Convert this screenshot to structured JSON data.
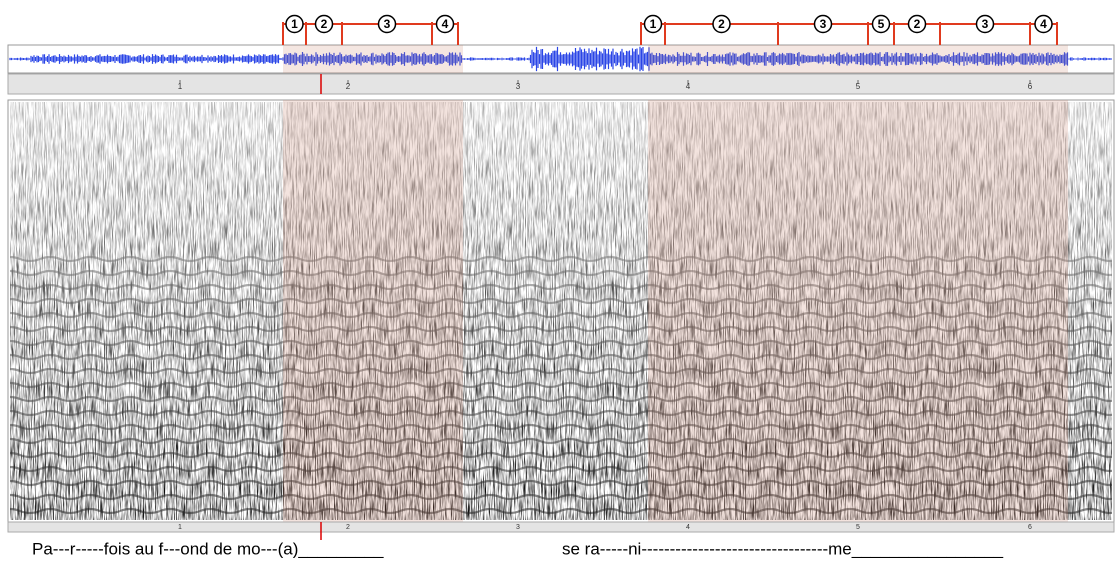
{
  "segment_labels": [
    "1",
    "2",
    "3",
    "4",
    "1",
    "2",
    "3",
    "5",
    "2",
    "3",
    "4"
  ],
  "time_axis": {
    "labels": [
      "1",
      "2",
      "3",
      "4",
      "5",
      "6"
    ]
  },
  "lyrics": [
    "Pa---r-----fois au f---ond   de mo---(a)_________",
    "se ra-----ni---------------------------------me________________"
  ]
}
